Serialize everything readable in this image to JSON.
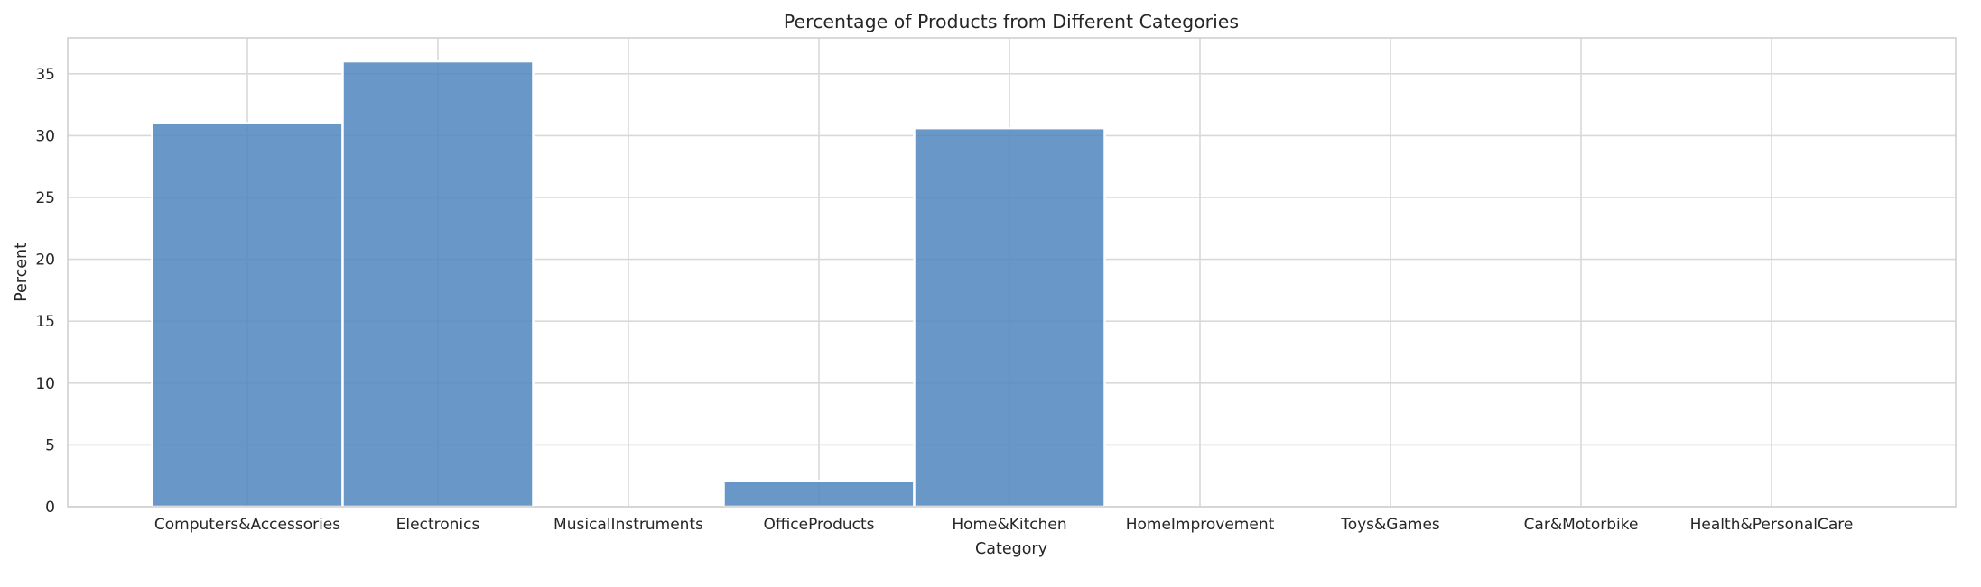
{
  "chart_data": {
    "type": "bar",
    "title": "Percentage of Products from Different Categories",
    "xlabel": "Category",
    "ylabel": "Percent",
    "categories": [
      "Computers&Accessories",
      "Electronics",
      "MusicalInstruments",
      "OfficeProducts",
      "Home&Kitchen",
      "HomeImprovement",
      "Toys&Games",
      "Car&Motorbike",
      "Health&PersonalCare"
    ],
    "values": [
      31.0,
      36.0,
      0,
      2.1,
      30.6,
      0,
      0,
      0,
      0
    ],
    "ylim": [
      0,
      37.9
    ],
    "yticks": [
      0,
      5,
      10,
      15,
      20,
      25,
      30,
      35
    ],
    "grid": true,
    "legend": "none",
    "bar_color": "#4f86be",
    "grid_color": "#d9d9d9"
  }
}
